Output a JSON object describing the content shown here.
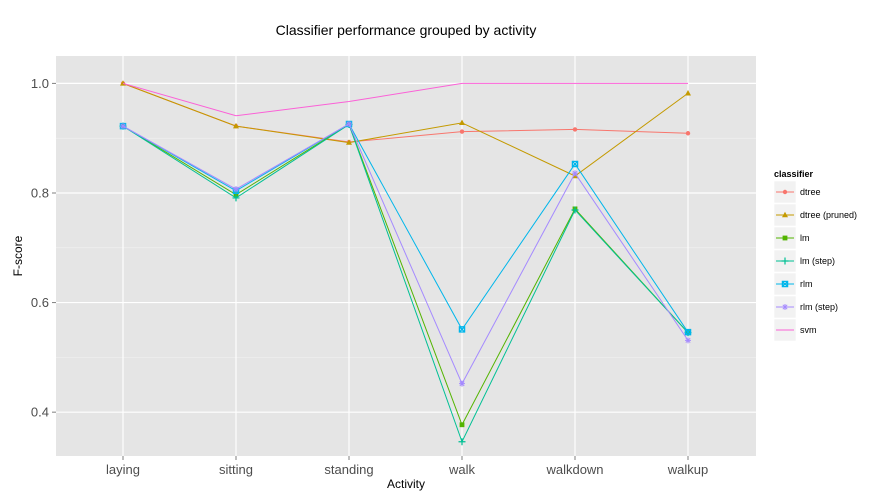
{
  "chart_data": {
    "type": "line",
    "title": "Classifier performance grouped by activity",
    "xlabel": "Activity",
    "ylabel": "F-score",
    "categories": [
      "laying",
      "sitting",
      "standing",
      "walk",
      "walkdown",
      "walkup"
    ],
    "ylim": [
      0.32,
      1.05
    ],
    "yticks": [
      0.4,
      0.6,
      0.8,
      1.0
    ],
    "ytick_labels": [
      "0.4",
      "0.6",
      "0.8",
      "1.0"
    ],
    "grid": true,
    "legend": {
      "title": "classifier",
      "position": "right"
    },
    "series": [
      {
        "name": "dtree",
        "color": "#F8766D",
        "marker": "circle",
        "values": [
          1.0,
          0.922,
          0.893,
          0.912,
          0.916,
          0.909
        ]
      },
      {
        "name": "dtree (pruned)",
        "color": "#C49A00",
        "marker": "triangle",
        "values": [
          1.0,
          0.922,
          0.892,
          0.928,
          0.831,
          0.982
        ]
      },
      {
        "name": "lm",
        "color": "#53B400",
        "marker": "square",
        "values": [
          0.922,
          0.797,
          0.925,
          0.377,
          0.771,
          0.545
        ]
      },
      {
        "name": "lm (step)",
        "color": "#00C094",
        "marker": "plus",
        "values": [
          0.922,
          0.791,
          0.925,
          0.346,
          0.769,
          0.545
        ]
      },
      {
        "name": "rlm",
        "color": "#00B6EB",
        "marker": "boxx",
        "values": [
          0.922,
          0.804,
          0.926,
          0.551,
          0.853,
          0.546
        ]
      },
      {
        "name": "rlm (step)",
        "color": "#A58AFF",
        "marker": "star",
        "values": [
          0.922,
          0.807,
          0.926,
          0.452,
          0.836,
          0.531
        ]
      },
      {
        "name": "svm",
        "color": "#FB61D7",
        "marker": "none",
        "values": [
          1.0,
          0.941,
          0.967,
          1.0,
          1.0,
          1.0
        ]
      }
    ]
  }
}
